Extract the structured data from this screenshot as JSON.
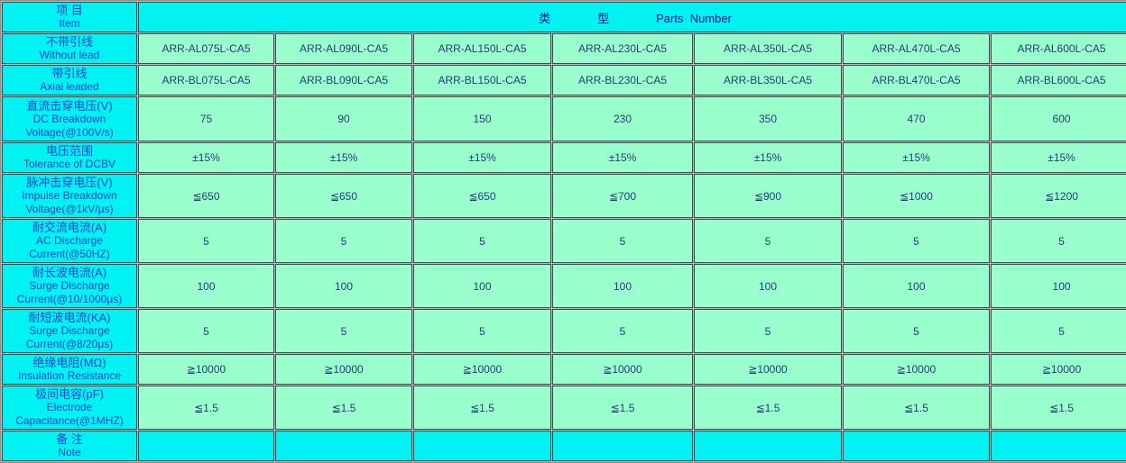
{
  "colors": {
    "cyan": "#00f2f2",
    "mint": "#99ffcc",
    "label_text": "#2444cc",
    "value_text": "#253c78",
    "header_text": "#000e96"
  },
  "table": {
    "corner": {
      "cn": "项 目",
      "en": "Item"
    },
    "header": {
      "title": "类　　　　型　　　　Parts  Number"
    },
    "rows": [
      {
        "id": "without-lead",
        "cn": "不带引线",
        "en": "Without lead",
        "values": [
          "ARR-AL075L-CA5",
          "ARR-AL090L-CA5",
          "ARR-AL150L-CA5",
          "ARR-AL230L-CA5",
          "ARR-AL350L-CA5",
          "ARR-AL470L-CA5",
          "ARR-AL600L-CA5"
        ]
      },
      {
        "id": "axial-leaded",
        "cn": "带引线",
        "en": "Axial leaded",
        "values": [
          "ARR-BL075L-CA5",
          "ARR-BL090L-CA5",
          "ARR-BL150L-CA5",
          "ARR-BL230L-CA5",
          "ARR-BL350L-CA5",
          "ARR-BL470L-CA5",
          "ARR-BL600L-CA5"
        ]
      },
      {
        "id": "dc-breakdown-voltage",
        "cn": "直流击穿电压(V)",
        "en": "DC Breakdown",
        "en2": "Voltage(@100V/s)",
        "values": [
          "75",
          "90",
          "150",
          "230",
          "350",
          "470",
          "600"
        ]
      },
      {
        "id": "dcbv-tolerance",
        "cn": "电压范围",
        "en": "Tolerance of DCBV",
        "values": [
          "±15%",
          "±15%",
          "±15%",
          "±15%",
          "±15%",
          "±15%",
          "±15%"
        ]
      },
      {
        "id": "impulse-breakdown-voltage",
        "cn": "脉冲击穿电压(V)",
        "en": "Impulse Breakdown",
        "en2": "Voltage(@1kV/μs)",
        "values": [
          "≦650",
          "≦650",
          "≦650",
          "≦700",
          "≦900",
          "≦1000",
          "≦1200"
        ]
      },
      {
        "id": "ac-discharge-current",
        "cn": "耐交流电流(A)",
        "en": "AC Discharge",
        "en2": "Current(@50HZ)",
        "values": [
          "5",
          "5",
          "5",
          "5",
          "5",
          "5",
          "5"
        ]
      },
      {
        "id": "surge-discharge-current-long",
        "cn": "耐长波电流(A)",
        "en": "Surge Discharge",
        "en2": "Current(@10/1000μs)",
        "values": [
          "100",
          "100",
          "100",
          "100",
          "100",
          "100",
          "100"
        ]
      },
      {
        "id": "surge-discharge-current-short",
        "cn": "耐短波电流(KA)",
        "en": "Surge Discharge",
        "en2": "Current(@8/20μs)",
        "values": [
          "5",
          "5",
          "5",
          "5",
          "5",
          "5",
          "5"
        ]
      },
      {
        "id": "insulation-resistance",
        "cn": "绝缘电阻(MΩ)",
        "en": "Insulation Resistance",
        "values": [
          "≧10000",
          "≧10000",
          "≧10000",
          "≧10000",
          "≧10000",
          "≧10000",
          "≧10000"
        ]
      },
      {
        "id": "electrode-capacitance",
        "cn": "极间电容(pF)",
        "en": "Electrode",
        "en2": "Capacitance(@1MHZ)",
        "values": [
          "≦1.5",
          "≦1.5",
          "≦1.5",
          "≦1.5",
          "≦1.5",
          "≦1.5",
          "≦1.5"
        ]
      },
      {
        "id": "note",
        "cn": "备 注",
        "en": "Note",
        "cyan": true,
        "values": [
          "",
          "",
          "",
          "",
          "",
          "",
          ""
        ]
      }
    ]
  }
}
